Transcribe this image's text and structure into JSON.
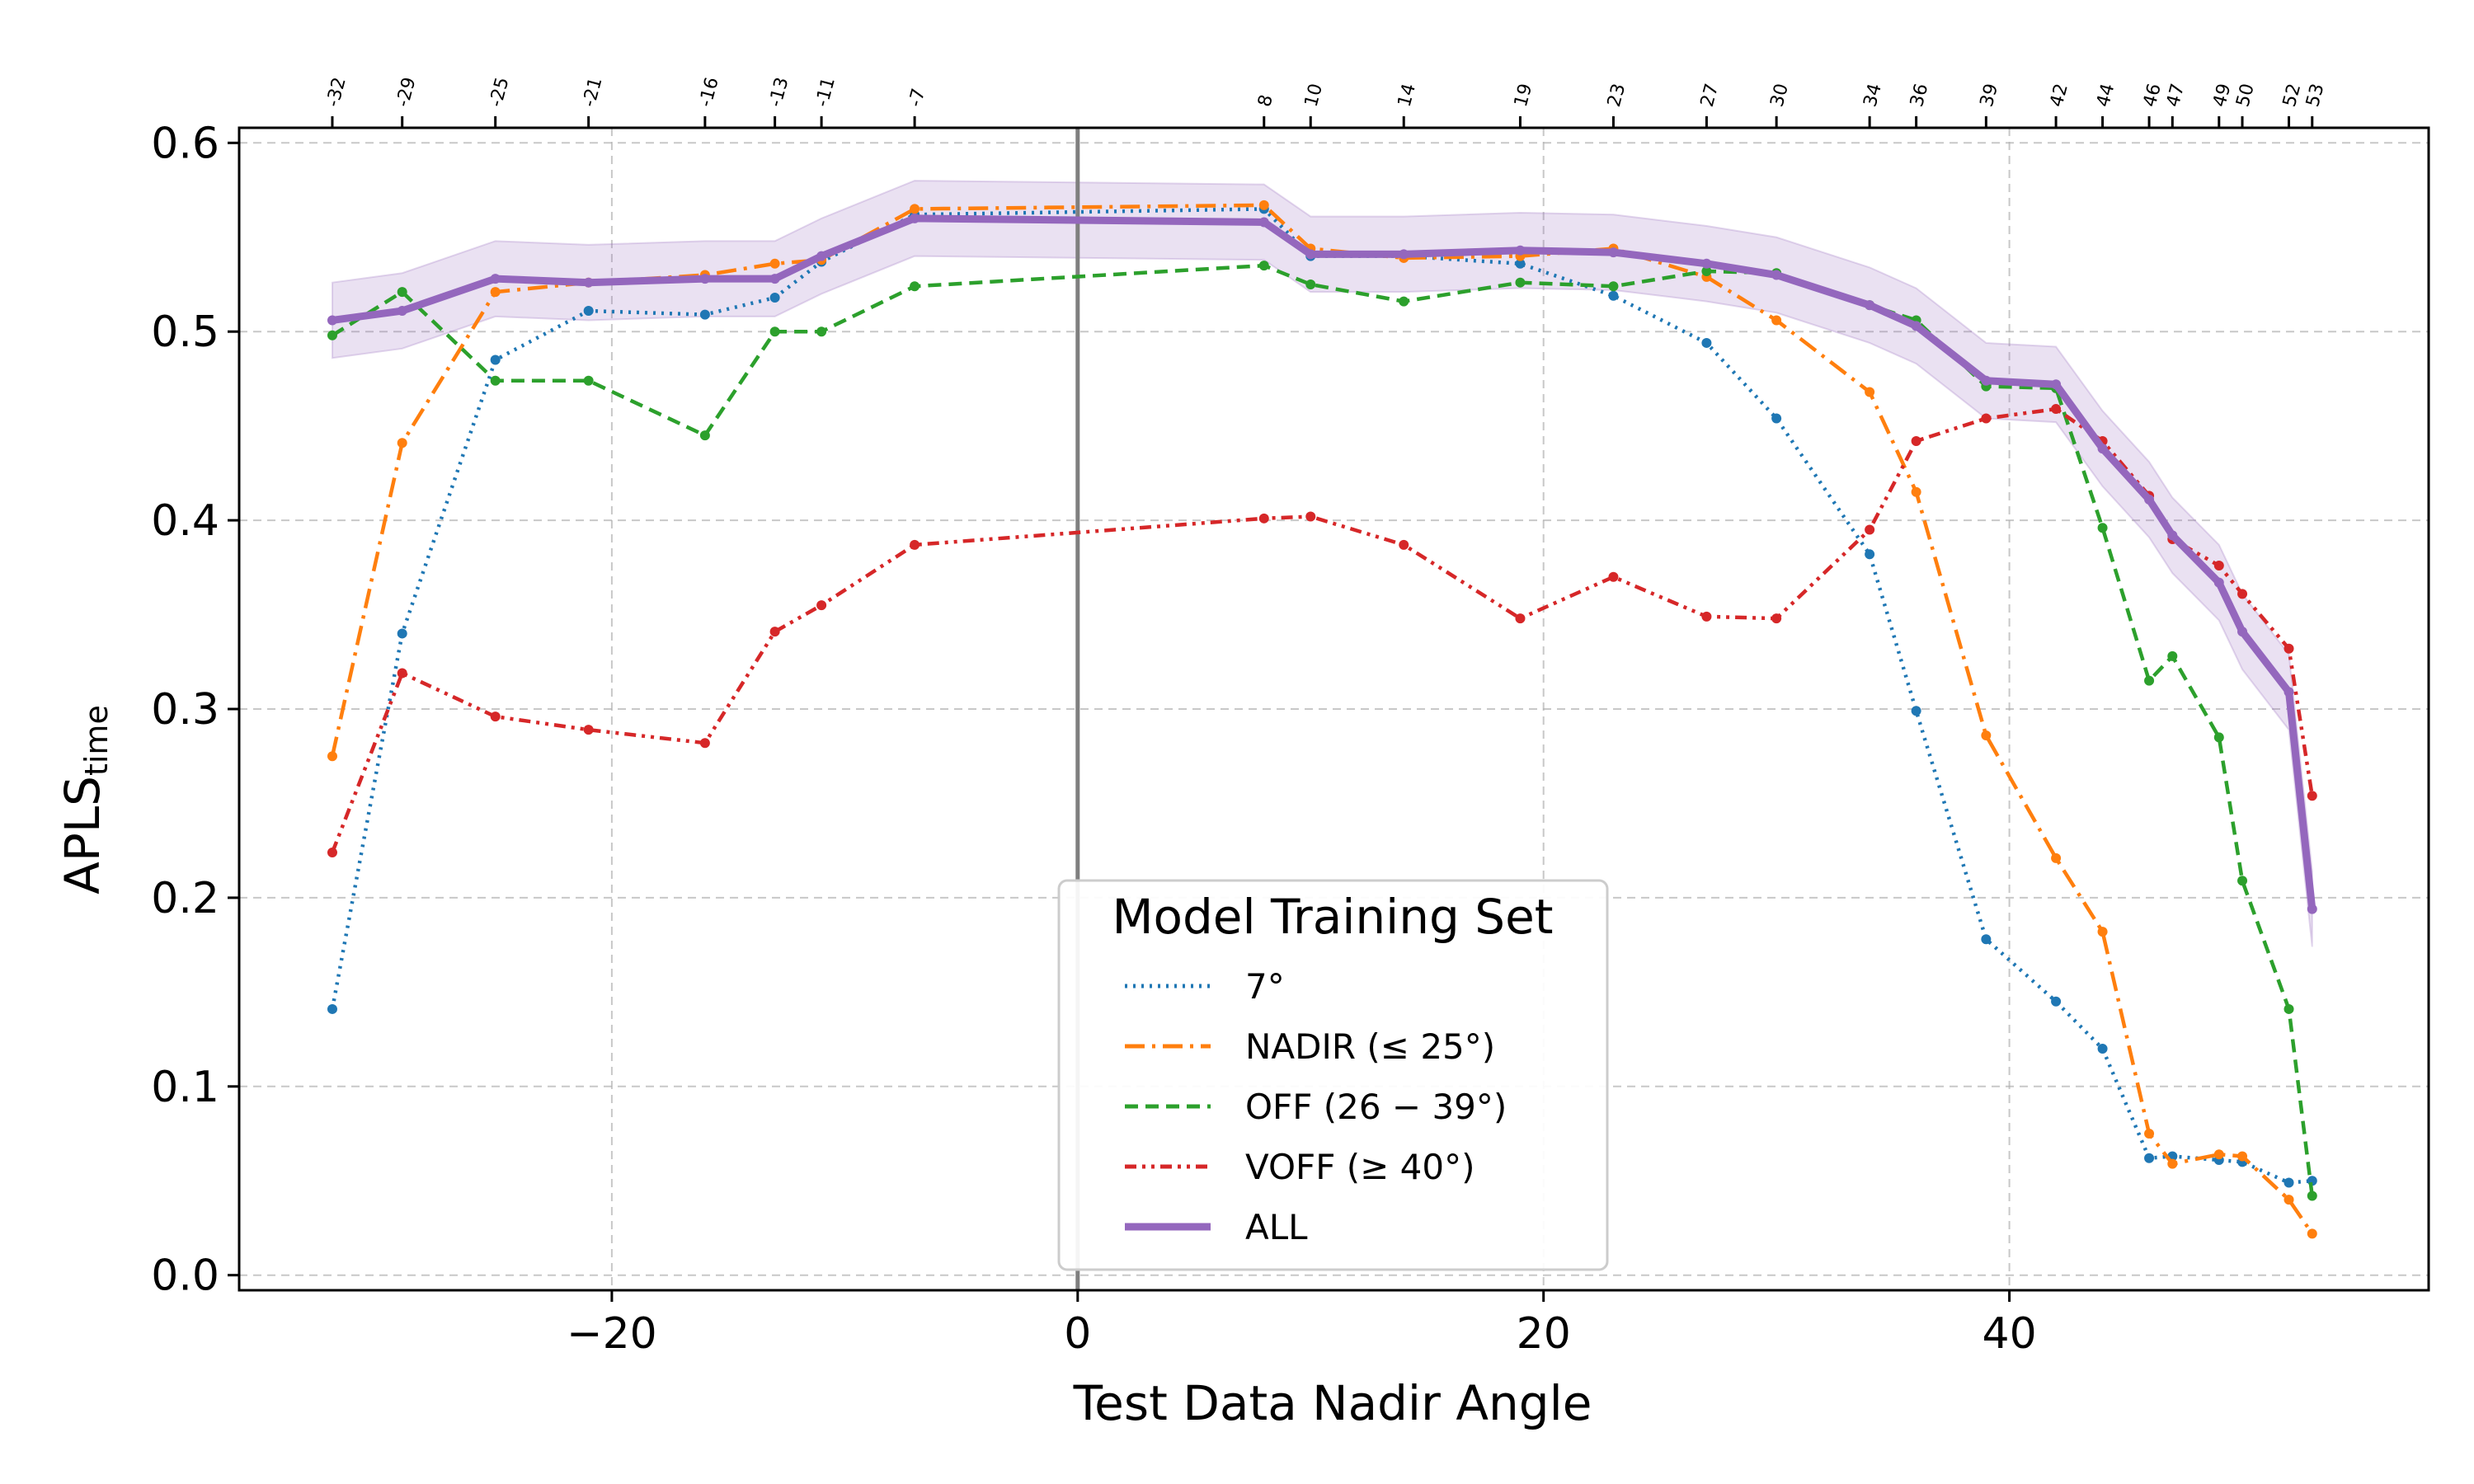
{
  "chart_data": {
    "type": "line",
    "xlabel": "Test Data Nadir Angle",
    "ylabel": "APLS",
    "ylabel_subscript": "time",
    "xlim": [
      -36,
      58
    ],
    "ylim": [
      -0.008,
      0.608
    ],
    "x_ticks": [
      -20,
      0,
      20,
      40
    ],
    "x_tick_labels": [
      "−20",
      "0",
      "20",
      "40"
    ],
    "y_ticks": [
      0.0,
      0.1,
      0.2,
      0.3,
      0.4,
      0.5,
      0.6
    ],
    "y_tick_labels": [
      "0.0",
      "0.1",
      "0.2",
      "0.3",
      "0.4",
      "0.5",
      "0.6"
    ],
    "grid": true,
    "vertical_reference_line_x": 0,
    "top_axis_ticks": [
      -32,
      -29,
      -25,
      -21,
      -16,
      -13,
      -11,
      -7,
      8,
      10,
      14,
      19,
      23,
      27,
      30,
      34,
      36,
      39,
      42,
      44,
      46,
      47,
      49,
      50,
      52,
      53
    ],
    "top_axis_labels": [
      "-32",
      "-29",
      "-25",
      "-21",
      "-16",
      "-13",
      "-11",
      "-7",
      "8",
      "10",
      "14",
      "19",
      "23",
      "27",
      "30",
      "34",
      "36",
      "39",
      "42",
      "44",
      "46",
      "47",
      "49",
      "50",
      "52",
      "53"
    ],
    "x": [
      -32,
      -29,
      -25,
      -21,
      -16,
      -13,
      -11,
      -7,
      8,
      10,
      14,
      19,
      23,
      27,
      30,
      34,
      36,
      39,
      42,
      44,
      46,
      47,
      49,
      50,
      52,
      53
    ],
    "legend": {
      "title": "Model Training Set",
      "position": "bottom-center"
    },
    "series": [
      {
        "name": "7°",
        "color": "#1f77b4",
        "style": "dotted",
        "values": [
          0.141,
          0.34,
          0.485,
          0.511,
          0.509,
          0.518,
          0.537,
          0.562,
          0.565,
          0.54,
          0.54,
          0.536,
          0.519,
          0.494,
          0.454,
          0.382,
          0.299,
          0.178,
          0.145,
          0.12,
          0.062,
          0.063,
          0.061,
          0.06,
          0.049,
          0.05
        ]
      },
      {
        "name": "NADIR (≤ 25°)",
        "color": "#ff7f0e",
        "style": "dashdot",
        "values": [
          0.275,
          0.441,
          0.521,
          0.526,
          0.53,
          0.536,
          0.538,
          0.565,
          0.567,
          0.544,
          0.539,
          0.54,
          0.544,
          0.529,
          0.506,
          0.468,
          0.415,
          0.286,
          0.221,
          0.182,
          0.075,
          0.059,
          0.064,
          0.063,
          0.04,
          0.022
        ]
      },
      {
        "name": "OFF (26 − 39°)",
        "color": "#2ca02c",
        "style": "dashed",
        "values": [
          0.498,
          0.521,
          0.474,
          0.474,
          0.445,
          0.5,
          0.5,
          0.524,
          0.535,
          0.525,
          0.516,
          0.526,
          0.524,
          0.532,
          0.531,
          0.514,
          0.506,
          0.471,
          0.47,
          0.396,
          0.315,
          0.328,
          0.285,
          0.209,
          0.141,
          0.042
        ]
      },
      {
        "name": "VOFF (≥ 40°)",
        "color": "#d62728",
        "style": "dashdotdot",
        "values": [
          0.224,
          0.319,
          0.296,
          0.289,
          0.282,
          0.341,
          0.355,
          0.387,
          0.401,
          0.402,
          0.387,
          0.348,
          0.37,
          0.349,
          0.348,
          0.395,
          0.442,
          0.454,
          0.459,
          0.442,
          0.413,
          0.39,
          0.376,
          0.361,
          0.332,
          0.254
        ]
      },
      {
        "name": "ALL",
        "color": "#9467bd",
        "style": "solid-thick",
        "band_halfwidth": 0.02,
        "values": [
          0.506,
          0.511,
          0.528,
          0.526,
          0.528,
          0.528,
          0.54,
          0.56,
          0.558,
          0.541,
          0.541,
          0.543,
          0.542,
          0.536,
          0.53,
          0.514,
          0.503,
          0.474,
          0.472,
          0.438,
          0.411,
          0.392,
          0.367,
          0.341,
          0.309,
          0.194
        ]
      }
    ]
  }
}
